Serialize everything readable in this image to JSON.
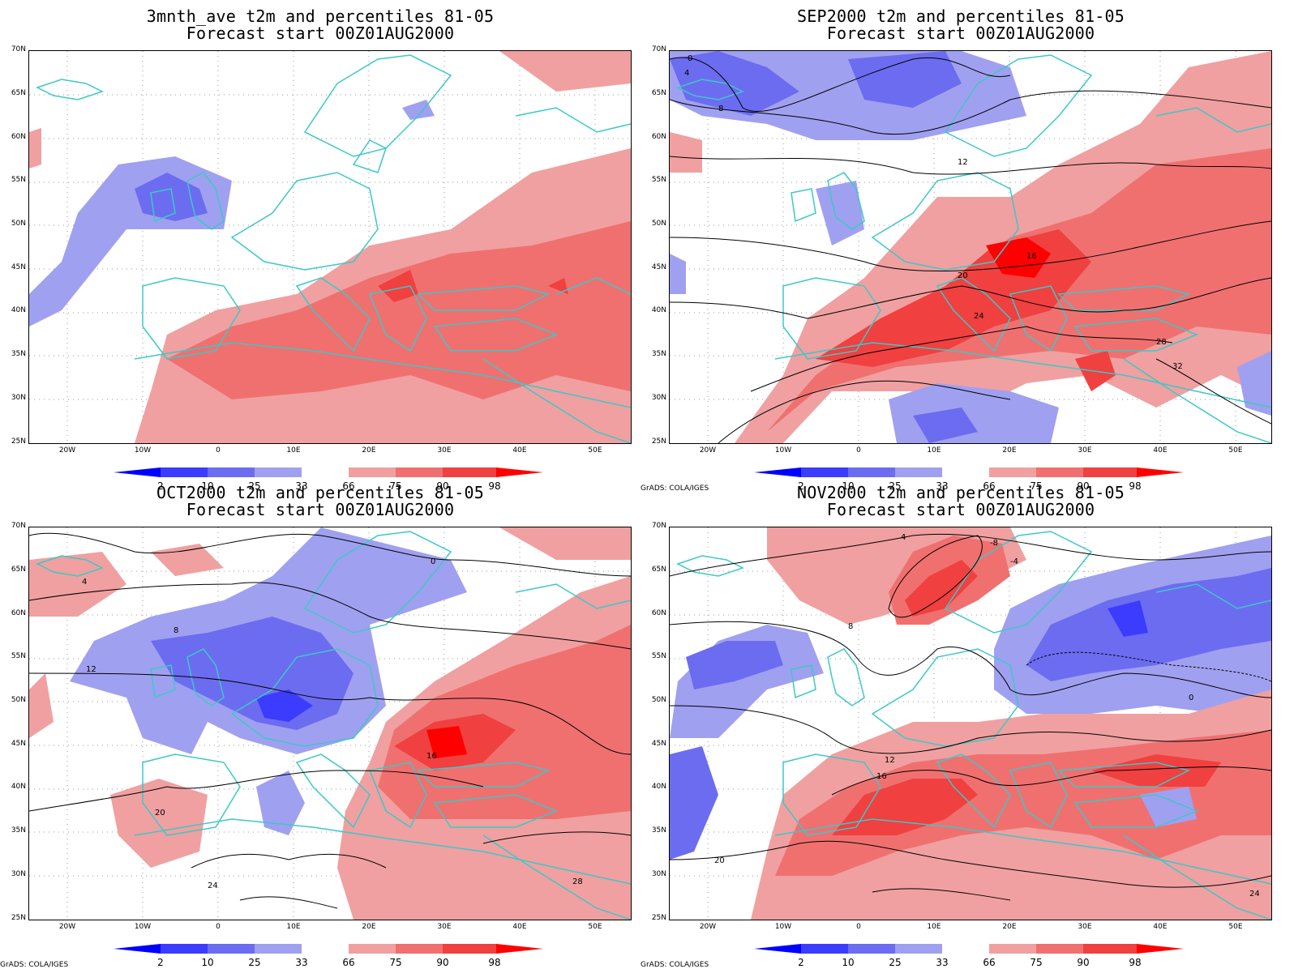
{
  "colors": {
    "p2": "#0000ff",
    "p10": "#3c3cff",
    "p25": "#6c6cf0",
    "p33": "#a0a0f0",
    "p66": "#f0a0a0",
    "p75": "#f07070",
    "p90": "#f04040",
    "p98": "#ff0000",
    "coast": "#3cc8c8",
    "contour": "#000000"
  },
  "axes": {
    "lat_labels": [
      "70N",
      "65N",
      "60N",
      "55N",
      "50N",
      "45N",
      "40N",
      "35N",
      "30N",
      "25N"
    ],
    "lon_labels": [
      "20W",
      "10W",
      "0",
      "10E",
      "20E",
      "30E",
      "40E",
      "50E"
    ]
  },
  "colorbar": {
    "labels": [
      "2",
      "10",
      "25",
      "33",
      "66",
      "75",
      "90",
      "98"
    ]
  },
  "credit": "GrADS: COLA/IGES",
  "panels": [
    {
      "title": "3mnth_ave t2m and percentiles 81-05",
      "subtitle": "Forecast start 00Z01AUG2000",
      "contour_labels": []
    },
    {
      "title": "SEP2000 t2m and percentiles 81-05",
      "subtitle": "Forecast start 00Z01AUG2000",
      "contour_labels": [
        "0",
        "4",
        "8",
        "12",
        "16",
        "20",
        "24",
        "28",
        "32"
      ]
    },
    {
      "title": "OCT2000 t2m and percentiles 81-05",
      "subtitle": "Forecast start 00Z01AUG2000",
      "contour_labels": [
        "0",
        "4",
        "8",
        "12",
        "16",
        "20",
        "24",
        "28"
      ]
    },
    {
      "title": "NOV2000 t2m and percentiles 81-05",
      "subtitle": "Forecast start 00Z01AUG2000",
      "contour_labels": [
        "-8",
        "-4",
        "0",
        "4",
        "8",
        "12",
        "16",
        "20",
        "24"
      ]
    }
  ]
}
